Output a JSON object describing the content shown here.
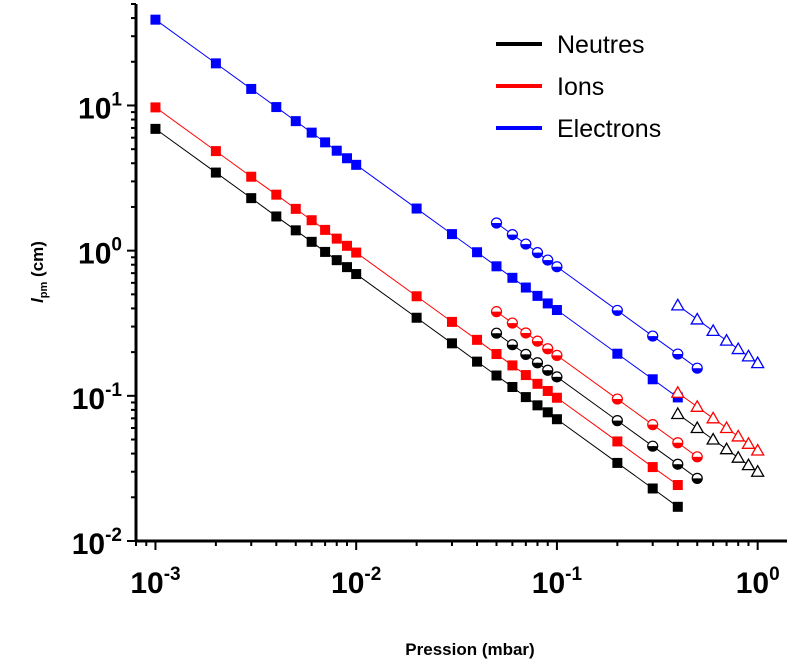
{
  "chart_data": {
    "type": "scatter",
    "xscale": "log",
    "yscale": "log",
    "xlim": [
      0.0008,
      1.4
    ],
    "ylim": [
      0.01,
      50
    ],
    "xlabel": "Pression (mbar)",
    "ylabel_main": "l",
    "ylabel_sub": "pm",
    "ylabel_unit": " (cm)",
    "x_ticks": [
      {
        "base": "10",
        "exp": "-3",
        "value": 0.001
      },
      {
        "base": "10",
        "exp": "-2",
        "value": 0.01
      },
      {
        "base": "10",
        "exp": "-1",
        "value": 0.1
      },
      {
        "base": "10",
        "exp": "0",
        "value": 1
      }
    ],
    "y_ticks": [
      {
        "base": "10",
        "exp": "-2",
        "value": 0.01
      },
      {
        "base": "10",
        "exp": "-1",
        "value": 0.1
      },
      {
        "base": "10",
        "exp": "0",
        "value": 1
      },
      {
        "base": "10",
        "exp": "1",
        "value": 10
      }
    ],
    "legend_position": "top-right",
    "legend": [
      {
        "name": "Neutres",
        "color": "#000000"
      },
      {
        "name": "Ions",
        "color": "#ff0000"
      },
      {
        "name": "Electrons",
        "color": "#0000ff"
      }
    ],
    "series": [
      {
        "species": "Neutres",
        "marker": "square",
        "color": "#000000",
        "x": [
          0.001,
          0.002,
          0.003,
          0.004,
          0.005,
          0.006,
          0.007,
          0.008,
          0.009,
          0.01,
          0.02,
          0.03,
          0.04,
          0.05,
          0.06,
          0.07,
          0.08,
          0.09,
          0.1,
          0.2,
          0.3,
          0.4
        ],
        "y": [
          6.9,
          3.45,
          2.3,
          1.72,
          1.38,
          1.15,
          0.98,
          0.86,
          0.77,
          0.69,
          0.345,
          0.23,
          0.172,
          0.138,
          0.115,
          0.098,
          0.086,
          0.077,
          0.069,
          0.0345,
          0.023,
          0.0172
        ]
      },
      {
        "species": "Ions",
        "marker": "square",
        "color": "#ff0000",
        "x": [
          0.001,
          0.002,
          0.003,
          0.004,
          0.005,
          0.006,
          0.007,
          0.008,
          0.009,
          0.01,
          0.02,
          0.03,
          0.04,
          0.05,
          0.06,
          0.07,
          0.08,
          0.09,
          0.1,
          0.2,
          0.3,
          0.4
        ],
        "y": [
          9.7,
          4.85,
          3.23,
          2.43,
          1.94,
          1.62,
          1.39,
          1.21,
          1.08,
          0.97,
          0.485,
          0.323,
          0.243,
          0.194,
          0.162,
          0.139,
          0.121,
          0.108,
          0.097,
          0.0485,
          0.0323,
          0.0243
        ]
      },
      {
        "species": "Electrons",
        "marker": "square",
        "color": "#0000ff",
        "x": [
          0.001,
          0.002,
          0.003,
          0.004,
          0.005,
          0.006,
          0.007,
          0.008,
          0.009,
          0.01,
          0.02,
          0.03,
          0.04,
          0.05,
          0.06,
          0.07,
          0.08,
          0.09,
          0.1,
          0.2,
          0.3,
          0.4
        ],
        "y": [
          39,
          19.5,
          13,
          9.75,
          7.8,
          6.5,
          5.57,
          4.88,
          4.33,
          3.9,
          1.95,
          1.3,
          0.975,
          0.78,
          0.65,
          0.557,
          0.488,
          0.433,
          0.39,
          0.195,
          0.13,
          0.0975
        ]
      },
      {
        "species": "Neutres",
        "marker": "half-circle",
        "color": "#000000",
        "x": [
          0.05,
          0.06,
          0.07,
          0.08,
          0.09,
          0.1,
          0.2,
          0.3,
          0.4,
          0.5
        ],
        "y": [
          0.27,
          0.225,
          0.193,
          0.169,
          0.15,
          0.135,
          0.0675,
          0.045,
          0.0338,
          0.027
        ]
      },
      {
        "species": "Ions",
        "marker": "half-circle",
        "color": "#ff0000",
        "x": [
          0.05,
          0.06,
          0.07,
          0.08,
          0.09,
          0.1,
          0.2,
          0.3,
          0.4,
          0.5
        ],
        "y": [
          0.38,
          0.317,
          0.271,
          0.238,
          0.211,
          0.19,
          0.095,
          0.0633,
          0.0475,
          0.038
        ]
      },
      {
        "species": "Electrons",
        "marker": "half-circle",
        "color": "#0000ff",
        "x": [
          0.05,
          0.06,
          0.07,
          0.08,
          0.09,
          0.1,
          0.2,
          0.3,
          0.4,
          0.5
        ],
        "y": [
          1.55,
          1.29,
          1.11,
          0.969,
          0.861,
          0.775,
          0.3875,
          0.258,
          0.194,
          0.155
        ]
      },
      {
        "species": "Neutres",
        "marker": "open-triangle",
        "color": "#000000",
        "x": [
          0.4,
          0.5,
          0.6,
          0.7,
          0.8,
          0.9,
          1.0
        ],
        "y": [
          0.075,
          0.06,
          0.05,
          0.0429,
          0.0375,
          0.0333,
          0.03
        ]
      },
      {
        "species": "Ions",
        "marker": "open-triangle",
        "color": "#ff0000",
        "x": [
          0.4,
          0.5,
          0.6,
          0.7,
          0.8,
          0.9,
          1.0
        ],
        "y": [
          0.105,
          0.084,
          0.07,
          0.06,
          0.0525,
          0.0467,
          0.042
        ]
      },
      {
        "species": "Electrons",
        "marker": "open-triangle",
        "color": "#0000ff",
        "x": [
          0.4,
          0.5,
          0.6,
          0.7,
          0.8,
          0.9,
          1.0
        ],
        "y": [
          0.42,
          0.336,
          0.28,
          0.24,
          0.21,
          0.187,
          0.168
        ]
      }
    ]
  }
}
